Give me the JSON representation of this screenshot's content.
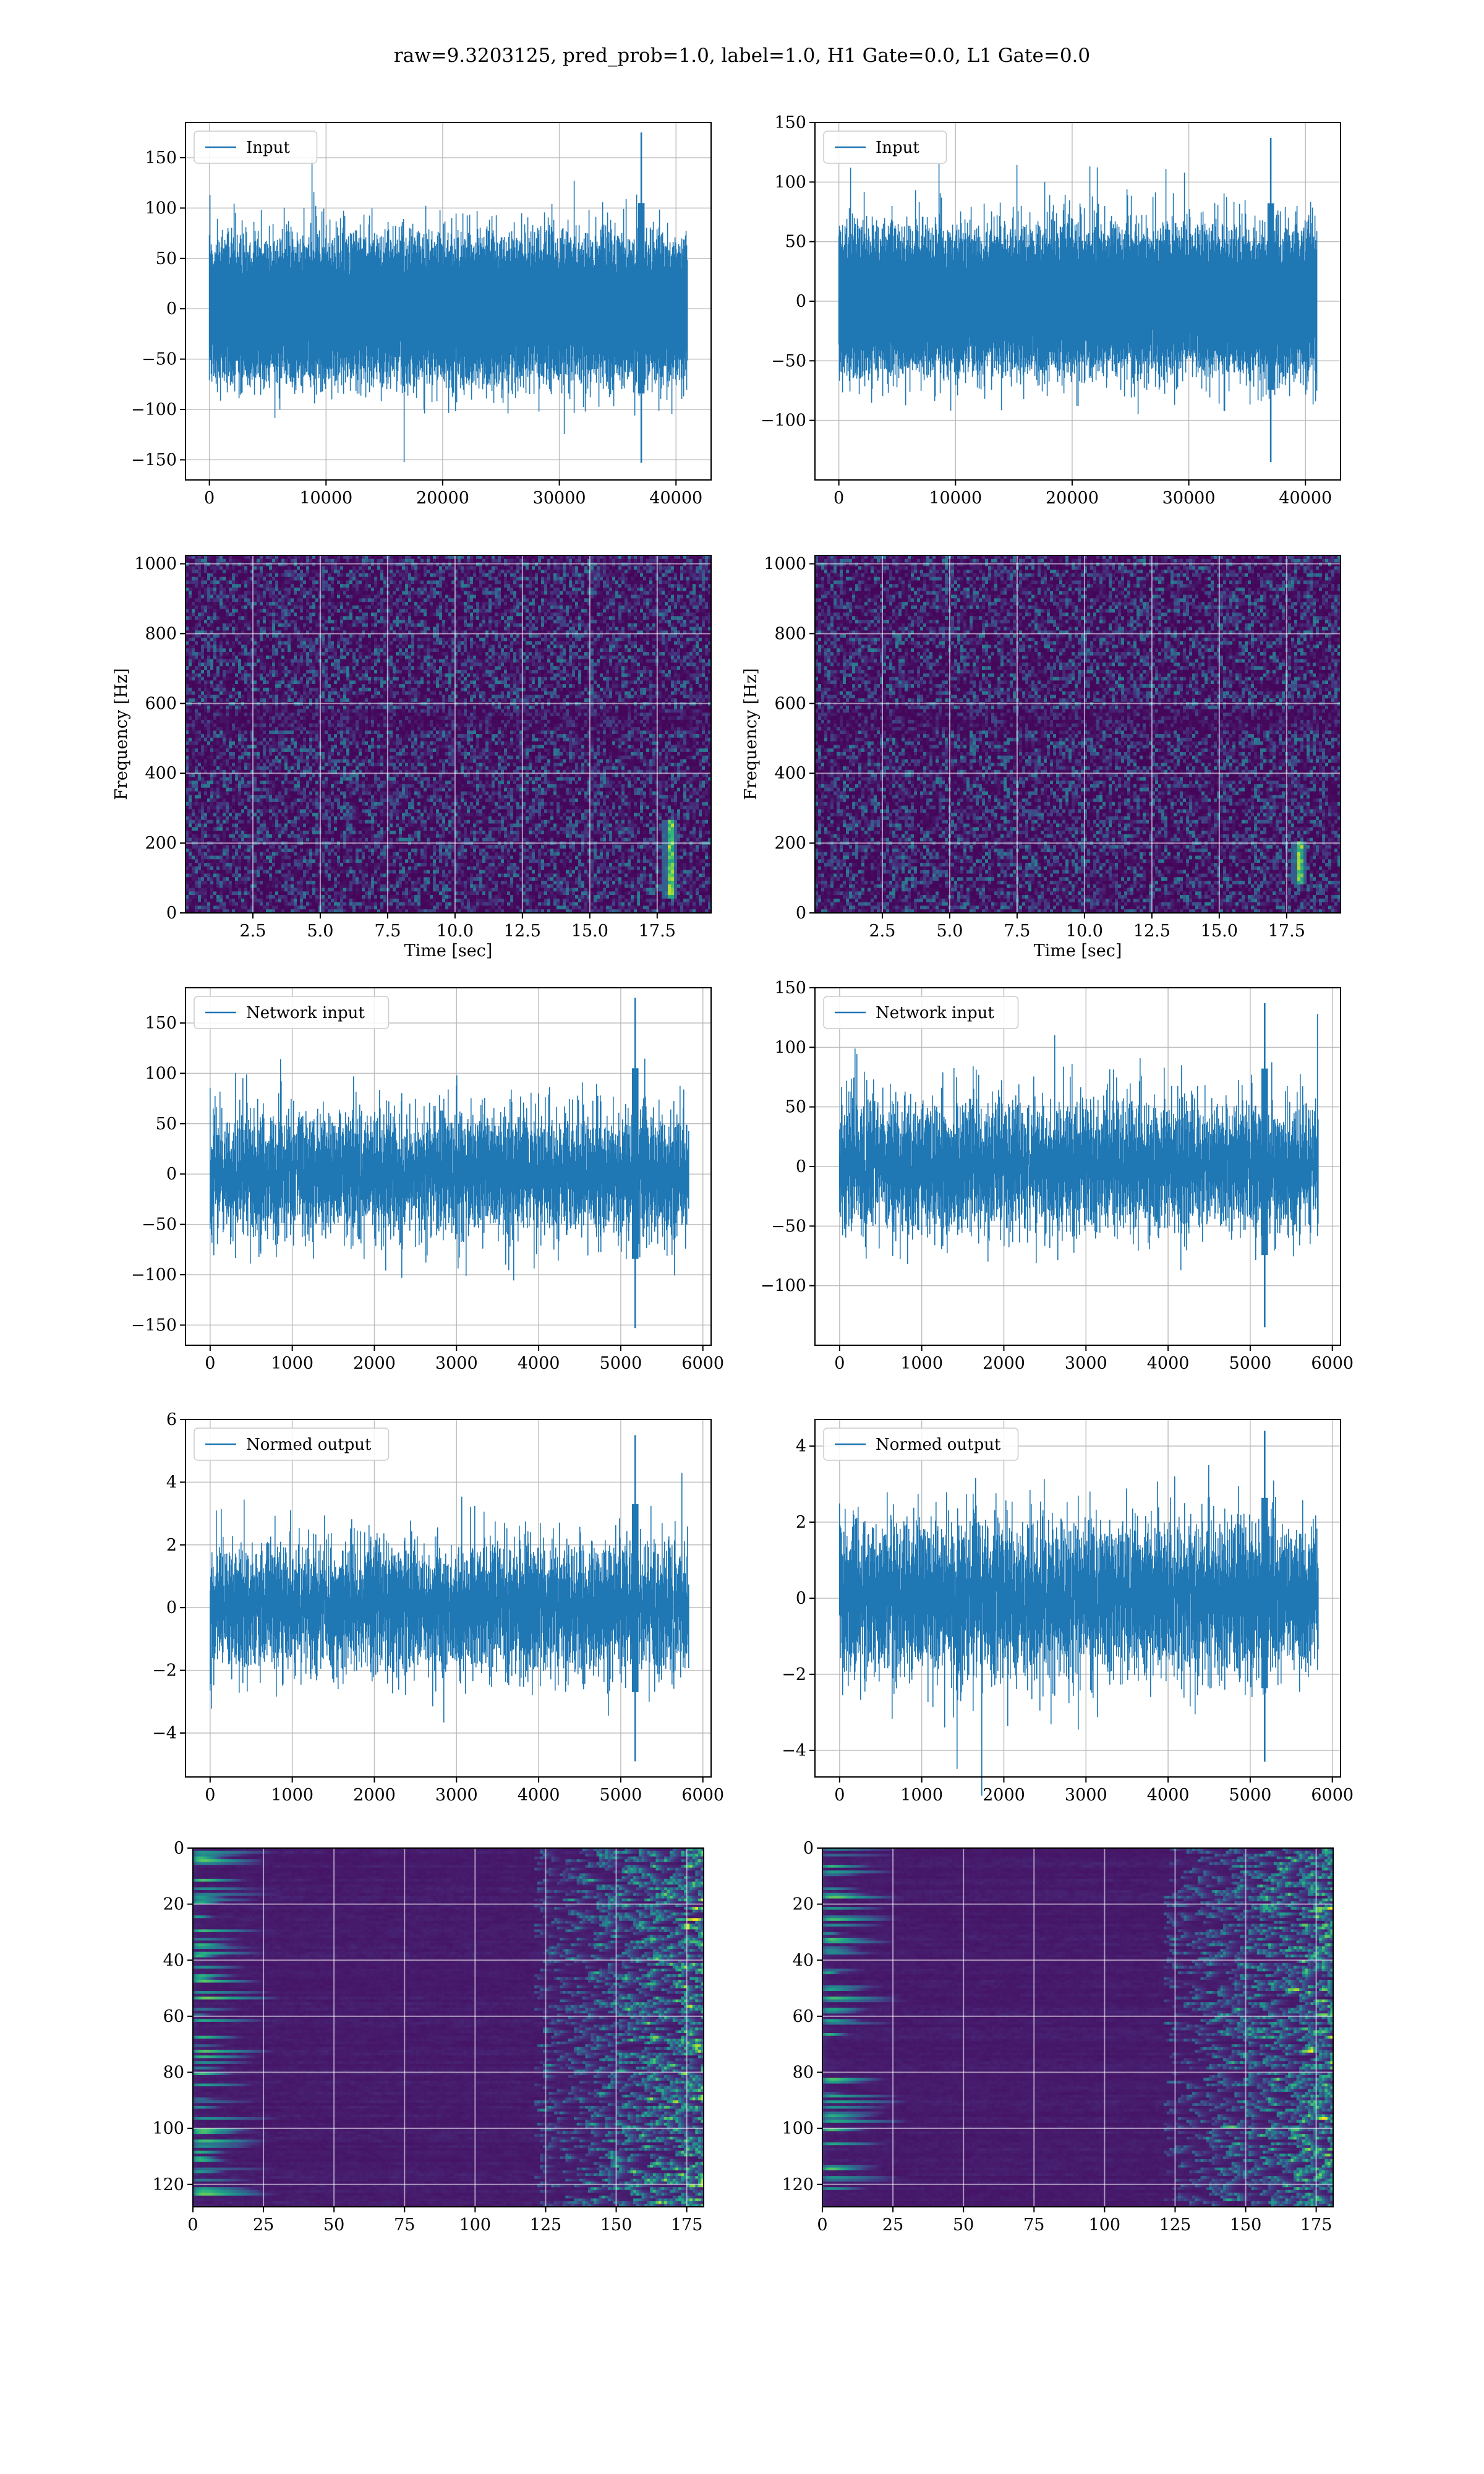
{
  "figure": {
    "title": "raw=9.3203125, pred_prob=1.0, label=1.0, H1 Gate=0.0, L1 Gate=0.0"
  },
  "colors": {
    "line": "#1f77b4",
    "grid": "#b0b0b0",
    "viridis": [
      "#440154",
      "#482878",
      "#3e4a89",
      "#31688e",
      "#26828e",
      "#1f9e89",
      "#35b779",
      "#6ece58",
      "#b5de2b",
      "#fde725"
    ]
  },
  "chart_data": [
    {
      "id": "input_h1",
      "type": "line",
      "legend": "Input",
      "xlim": [
        -2048,
        43008
      ],
      "ylim": [
        -170,
        185
      ],
      "xticks": [
        0,
        10000,
        20000,
        30000,
        40000
      ],
      "xtick_labels": [
        "0",
        "10000",
        "20000",
        "30000",
        "40000"
      ],
      "yticks": [
        -150,
        -100,
        -50,
        0,
        50,
        100,
        150
      ],
      "ytick_labels": [
        "−150",
        "−100",
        "−50",
        "0",
        "50",
        "100",
        "150"
      ],
      "signal": {
        "n": 40960,
        "sigma": 28,
        "spikes": [
          {
            "x": 37000,
            "lo": -153,
            "hi": 175
          }
        ]
      }
    },
    {
      "id": "input_l1",
      "type": "line",
      "legend": "Input",
      "xlim": [
        -2048,
        43008
      ],
      "ylim": [
        -150,
        150
      ],
      "xticks": [
        0,
        10000,
        20000,
        30000,
        40000
      ],
      "xtick_labels": [
        "0",
        "10000",
        "20000",
        "30000",
        "40000"
      ],
      "yticks": [
        -100,
        -50,
        0,
        50,
        100,
        150
      ],
      "ytick_labels": [
        "−100",
        "−50",
        "0",
        "50",
        "100",
        "150"
      ],
      "signal": {
        "n": 40960,
        "sigma": 24,
        "spikes": [
          {
            "x": 37000,
            "lo": -135,
            "hi": 137
          }
        ]
      }
    },
    {
      "id": "spec_h1",
      "type": "heatmap",
      "xlabel": "Time [sec]",
      "ylabel": "Frequency [Hz]",
      "xlim": [
        0.0,
        19.5
      ],
      "ylim": [
        0,
        1024
      ],
      "xticks": [
        2.5,
        5.0,
        7.5,
        10.0,
        12.5,
        15.0,
        17.5
      ],
      "xtick_labels": [
        "2.5",
        "5.0",
        "7.5",
        "10.0",
        "12.5",
        "15.0",
        "17.5"
      ],
      "yticks": [
        0,
        200,
        400,
        600,
        800,
        1000
      ],
      "ytick_labels": [
        "0",
        "200",
        "400",
        "600",
        "800",
        "1000"
      ],
      "event": {
        "t": 17.95,
        "f_lo": 40,
        "f_hi": 260
      }
    },
    {
      "id": "spec_l1",
      "type": "heatmap",
      "xlabel": "Time [sec]",
      "ylabel": "Frequency [Hz]",
      "xlim": [
        0.0,
        19.5
      ],
      "ylim": [
        0,
        1024
      ],
      "xticks": [
        2.5,
        5.0,
        7.5,
        10.0,
        12.5,
        15.0,
        17.5
      ],
      "xtick_labels": [
        "2.5",
        "5.0",
        "7.5",
        "10.0",
        "12.5",
        "15.0",
        "17.5"
      ],
      "yticks": [
        0,
        200,
        400,
        600,
        800,
        1000
      ],
      "ytick_labels": [
        "0",
        "200",
        "400",
        "600",
        "800",
        "1000"
      ],
      "event": {
        "t": 17.95,
        "f_lo": 80,
        "f_hi": 200
      }
    },
    {
      "id": "net_h1",
      "type": "line",
      "legend": "Network input",
      "xlim": [
        -300,
        6100
      ],
      "ylim": [
        -170,
        185
      ],
      "xticks": [
        0,
        1000,
        2000,
        3000,
        4000,
        5000,
        6000
      ],
      "xtick_labels": [
        "0",
        "1000",
        "2000",
        "3000",
        "4000",
        "5000",
        "6000"
      ],
      "yticks": [
        -150,
        -100,
        -50,
        0,
        50,
        100,
        150
      ],
      "ytick_labels": [
        "−150",
        "−100",
        "−50",
        "0",
        "50",
        "100",
        "150"
      ],
      "signal": {
        "n": 5830,
        "sigma": 28,
        "spikes": [
          {
            "x": 5180,
            "lo": -153,
            "hi": 175
          }
        ]
      }
    },
    {
      "id": "net_l1",
      "type": "line",
      "legend": "Network input",
      "xlim": [
        -300,
        6100
      ],
      "ylim": [
        -150,
        150
      ],
      "xticks": [
        0,
        1000,
        2000,
        3000,
        4000,
        5000,
        6000
      ],
      "xtick_labels": [
        "0",
        "1000",
        "2000",
        "3000",
        "4000",
        "5000",
        "6000"
      ],
      "yticks": [
        -100,
        -50,
        0,
        50,
        100,
        150
      ],
      "ytick_labels": [
        "−100",
        "−50",
        "0",
        "50",
        "100",
        "150"
      ],
      "signal": {
        "n": 5830,
        "sigma": 25,
        "spikes": [
          {
            "x": 5180,
            "lo": -135,
            "hi": 137
          }
        ]
      }
    },
    {
      "id": "norm_h1",
      "type": "line",
      "legend": "Normed output",
      "xlim": [
        -300,
        6100
      ],
      "ylim": [
        -5.4,
        6.0
      ],
      "xticks": [
        0,
        1000,
        2000,
        3000,
        4000,
        5000,
        6000
      ],
      "xtick_labels": [
        "0",
        "1000",
        "2000",
        "3000",
        "4000",
        "5000",
        "6000"
      ],
      "yticks": [
        -4,
        -2,
        0,
        2,
        4,
        6
      ],
      "ytick_labels": [
        "−4",
        "−2",
        "0",
        "2",
        "4",
        "6"
      ],
      "signal": {
        "n": 5830,
        "sigma": 0.95,
        "spikes": [
          {
            "x": 5180,
            "lo": -4.9,
            "hi": 5.5
          }
        ]
      }
    },
    {
      "id": "norm_l1",
      "type": "line",
      "legend": "Normed output",
      "xlim": [
        -300,
        6100
      ],
      "ylim": [
        -4.7,
        4.7
      ],
      "xticks": [
        0,
        1000,
        2000,
        3000,
        4000,
        5000,
        6000
      ],
      "xtick_labels": [
        "0",
        "1000",
        "2000",
        "3000",
        "4000",
        "5000",
        "6000"
      ],
      "yticks": [
        -4,
        -2,
        0,
        2,
        4
      ],
      "ytick_labels": [
        "−4",
        "−2",
        "0",
        "2",
        "4"
      ],
      "signal": {
        "n": 5830,
        "sigma": 0.95,
        "spikes": [
          {
            "x": 5180,
            "lo": -4.3,
            "hi": 4.4
          }
        ]
      }
    },
    {
      "id": "feat_h1",
      "type": "heatmap",
      "xlim": [
        0,
        181
      ],
      "ylim": [
        128,
        0
      ],
      "xticks": [
        0,
        25,
        50,
        75,
        100,
        125,
        150,
        175
      ],
      "xtick_labels": [
        "0",
        "25",
        "50",
        "75",
        "100",
        "125",
        "150",
        "175"
      ],
      "yticks": [
        0,
        20,
        40,
        60,
        80,
        100,
        120
      ],
      "ytick_labels": [
        "0",
        "20",
        "40",
        "60",
        "80",
        "100",
        "120"
      ]
    },
    {
      "id": "feat_l1",
      "type": "heatmap",
      "xlim": [
        0,
        181
      ],
      "ylim": [
        128,
        0
      ],
      "xticks": [
        0,
        25,
        50,
        75,
        100,
        125,
        150,
        175
      ],
      "xtick_labels": [
        "0",
        "25",
        "50",
        "75",
        "100",
        "125",
        "150",
        "175"
      ],
      "yticks": [
        0,
        20,
        40,
        60,
        80,
        100,
        120
      ],
      "ytick_labels": [
        "0",
        "20",
        "40",
        "60",
        "80",
        "100",
        "120"
      ]
    }
  ]
}
